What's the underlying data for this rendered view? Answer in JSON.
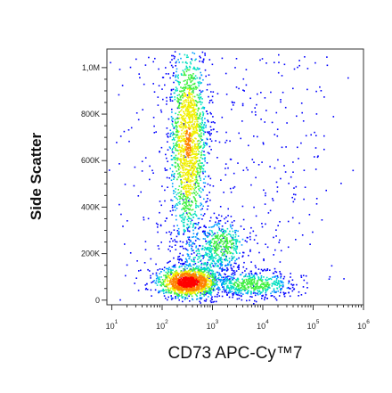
{
  "chart_data": {
    "type": "scatter",
    "xlabel": "CD73 APC-Cy™7",
    "ylabel": "Side Scatter",
    "xscale": "log",
    "xlim": [
      8,
      1000000
    ],
    "ylim": [
      -20000,
      1080000
    ],
    "x_ticks": [
      {
        "base": "10",
        "exp": "1",
        "value": 10
      },
      {
        "base": "10",
        "exp": "2",
        "value": 100
      },
      {
        "base": "10",
        "exp": "3",
        "value": 1000
      },
      {
        "base": "10",
        "exp": "4",
        "value": 10000
      },
      {
        "base": "10",
        "exp": "5",
        "value": 100000
      },
      {
        "base": "10",
        "exp": "6",
        "value": 1000000
      }
    ],
    "y_ticks": [
      {
        "label": "0",
        "value": 0
      },
      {
        "label": "200K",
        "value": 200000
      },
      {
        "label": "400K",
        "value": 400000
      },
      {
        "label": "600K",
        "value": 600000
      },
      {
        "label": "800K",
        "value": 800000
      },
      {
        "label": "1,0M",
        "value": 1000000
      }
    ],
    "populations": [
      {
        "center_x": 320,
        "center_ssc": 80000,
        "density": "highest"
      },
      {
        "center_x": 320,
        "center_ssc": 680000,
        "density": "high"
      },
      {
        "center_x": 1500,
        "center_ssc": 240000,
        "density": "medium"
      },
      {
        "center_x": 6000,
        "center_ssc": 70000,
        "density": "medium"
      }
    ],
    "grid": false,
    "colormap": [
      "#0000ff",
      "#00a0ff",
      "#00e0c0",
      "#40f040",
      "#f0f000",
      "#ff8000",
      "#ff0000"
    ]
  }
}
